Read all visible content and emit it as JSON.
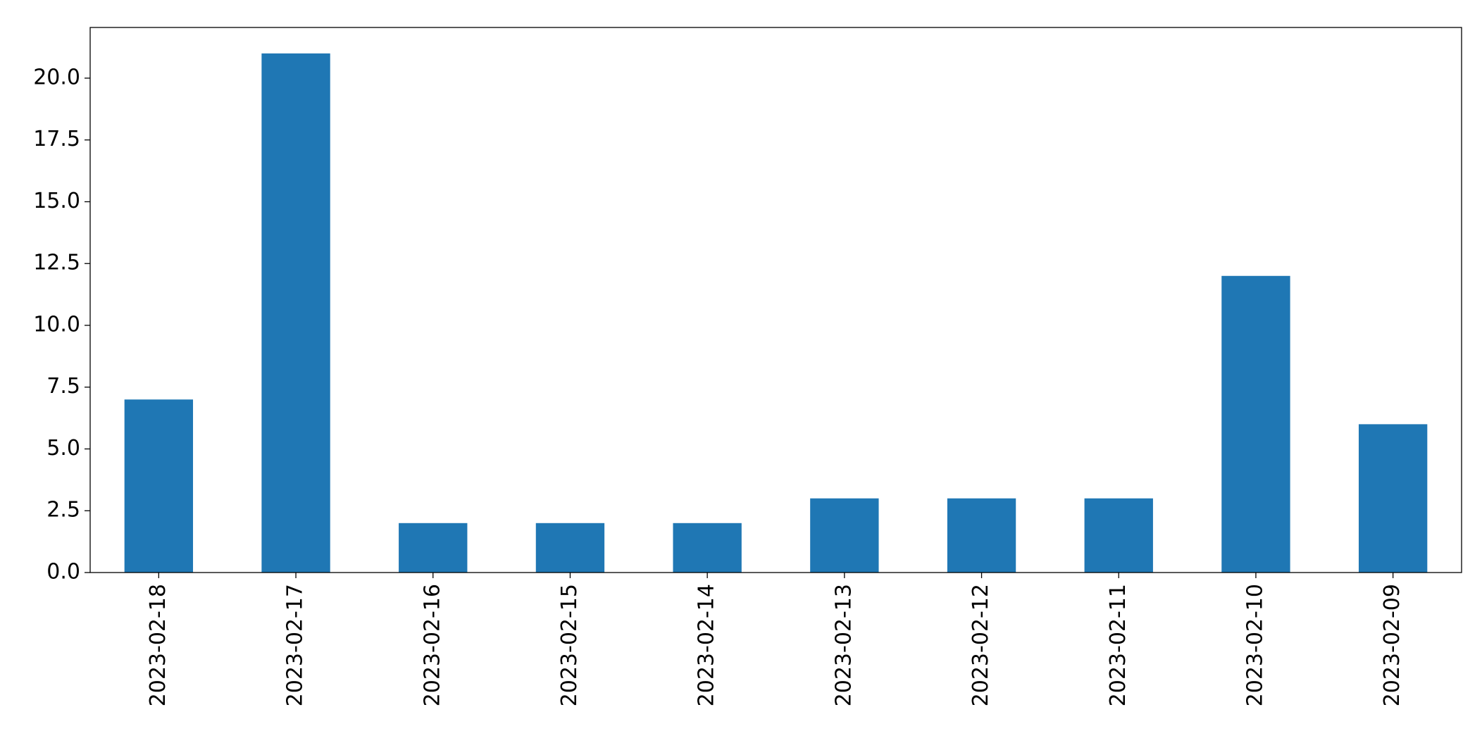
{
  "chart_data": {
    "type": "bar",
    "categories": [
      "2023-02-18",
      "2023-02-17",
      "2023-02-16",
      "2023-02-15",
      "2023-02-14",
      "2023-02-13",
      "2023-02-12",
      "2023-02-11",
      "2023-02-10",
      "2023-02-09"
    ],
    "values": [
      7,
      21,
      2,
      2,
      2,
      3,
      3,
      3,
      12,
      6
    ],
    "color": "#1f77b4",
    "ylim": [
      0,
      22.05
    ],
    "yticks": [
      {
        "value": 0,
        "label": "0.0"
      },
      {
        "value": 2.5,
        "label": "2.5"
      },
      {
        "value": 5,
        "label": "5.0"
      },
      {
        "value": 7.5,
        "label": "7.5"
      },
      {
        "value": 10,
        "label": "10.0"
      },
      {
        "value": 12.5,
        "label": "12.5"
      },
      {
        "value": 15,
        "label": "15.0"
      },
      {
        "value": 17.5,
        "label": "17.5"
      },
      {
        "value": 20,
        "label": "20.0"
      }
    ],
    "grid": false
  }
}
